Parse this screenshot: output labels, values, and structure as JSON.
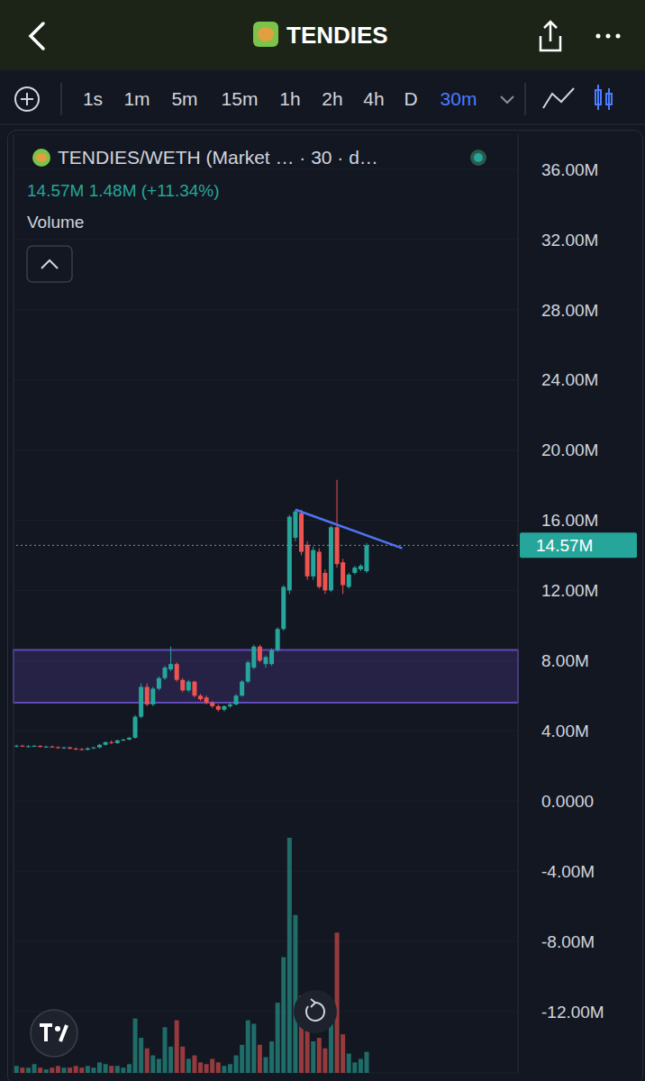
{
  "header": {
    "title": "TENDIES",
    "timeframes": [
      "1s",
      "1m",
      "5m",
      "15m",
      "1h",
      "2h",
      "4h",
      "D"
    ],
    "active_timeframe": "30m"
  },
  "info": {
    "pair": "TENDIES/WETH (Market … · 30 · d…",
    "ohlc": "14.57M 1.48M (+11.34%)",
    "volume": "Volume"
  },
  "chart_data": {
    "type": "candlestick",
    "categories": [
      null,
      null,
      null,
      null,
      null,
      null,
      null,
      null,
      null,
      null,
      null,
      null,
      null,
      null,
      null,
      null,
      null,
      null,
      null,
      null,
      null,
      null,
      null,
      null,
      null,
      null,
      null,
      null,
      null,
      null,
      null,
      null,
      null,
      null,
      null,
      null,
      null,
      null,
      null,
      null,
      null,
      null,
      null,
      null,
      null,
      null,
      null,
      null,
      null,
      null,
      null,
      null,
      null,
      null,
      null,
      null,
      null,
      null,
      null,
      null,
      null,
      null,
      null,
      null,
      null,
      null,
      null,
      null,
      null,
      null,
      null,
      null,
      null,
      null,
      null,
      null,
      null,
      null,
      null,
      null,
      null,
      null,
      null,
      null,
      null
    ],
    "open": [
      3.1,
      3.15,
      3.1,
      3.12,
      3.14,
      3.08,
      3.1,
      3.06,
      3.02,
      3.05,
      2.98,
      2.95,
      2.92,
      3.0,
      3.05,
      3.2,
      3.35,
      3.3,
      3.45,
      3.5,
      3.6,
      4.8,
      6.5,
      5.5,
      6.4,
      7.0,
      7.5,
      7.8,
      6.9,
      6.3,
      6.8,
      6.0,
      5.9,
      5.6,
      5.4,
      5.2,
      5.4,
      5.5,
      6.0,
      6.8,
      7.6,
      8.8,
      7.8,
      7.8,
      8.6,
      9.8,
      12.0,
      15.0,
      16.4,
      14.6,
      12.8,
      14.2,
      13.0,
      12.0,
      15.6,
      13.6,
      12.2,
      13.0,
      13.2,
      13.09,
      null,
      null,
      null,
      null,
      null,
      null,
      null,
      null,
      null,
      null,
      null,
      null,
      null,
      null,
      null,
      null,
      null,
      null,
      null,
      null,
      null,
      null,
      null,
      null,
      null
    ],
    "high": [
      3.2,
      3.2,
      3.18,
      3.2,
      3.18,
      3.15,
      3.16,
      3.12,
      3.1,
      3.1,
      3.05,
      3.02,
      3.05,
      3.1,
      3.25,
      3.4,
      3.45,
      3.5,
      3.55,
      3.65,
      4.9,
      6.7,
      6.7,
      6.5,
      7.1,
      7.7,
      8.8,
      7.9,
      7.0,
      6.9,
      6.85,
      6.1,
      6.0,
      5.7,
      5.5,
      5.45,
      5.6,
      6.1,
      6.9,
      8.0,
      8.9,
      8.9,
      8.3,
      8.7,
      9.9,
      12.3,
      16.3,
      16.6,
      16.6,
      14.8,
      14.5,
      14.4,
      13.2,
      15.7,
      18.3,
      13.8,
      13.0,
      13.4,
      13.5,
      14.7,
      null,
      null,
      null,
      null,
      null,
      null,
      null,
      null,
      null,
      null,
      null,
      null,
      null,
      null,
      null,
      null,
      null,
      null,
      null,
      null,
      null,
      null,
      null,
      null,
      null
    ],
    "low": [
      3.05,
      3.08,
      3.05,
      3.08,
      3.05,
      3.02,
      3.04,
      2.98,
      2.96,
      2.95,
      2.9,
      2.88,
      2.88,
      2.95,
      3.0,
      3.15,
      3.25,
      3.25,
      3.4,
      3.45,
      3.55,
      4.7,
      5.4,
      5.4,
      6.3,
      6.9,
      7.4,
      6.8,
      6.2,
      6.2,
      5.9,
      5.7,
      5.5,
      5.3,
      5.1,
      5.1,
      5.3,
      5.45,
      5.95,
      6.7,
      7.5,
      7.9,
      7.6,
      7.7,
      8.5,
      9.7,
      11.8,
      14.8,
      14.0,
      12.6,
      12.6,
      12.1,
      11.8,
      11.9,
      13.3,
      11.8,
      12.1,
      12.9,
      13.1,
      13.0,
      null,
      null,
      null,
      null,
      null,
      null,
      null,
      null,
      null,
      null,
      null,
      null,
      null,
      null,
      null,
      null,
      null,
      null,
      null,
      null,
      null,
      null,
      null,
      null,
      null
    ],
    "close": [
      3.15,
      3.1,
      3.12,
      3.14,
      3.08,
      3.1,
      3.06,
      3.02,
      3.05,
      2.98,
      2.95,
      2.92,
      3.0,
      3.05,
      3.2,
      3.35,
      3.3,
      3.45,
      3.5,
      3.6,
      4.8,
      6.5,
      5.5,
      6.4,
      7.0,
      7.6,
      7.8,
      6.9,
      6.3,
      6.8,
      6.0,
      5.8,
      5.6,
      5.4,
      5.2,
      5.4,
      5.5,
      6.0,
      6.8,
      7.9,
      8.8,
      8.0,
      8.2,
      8.6,
      9.8,
      12.2,
      16.2,
      16.5,
      14.2,
      12.8,
      14.3,
      12.2,
      12.0,
      15.6,
      13.5,
      12.3,
      12.9,
      13.3,
      13.4,
      14.57,
      null,
      null,
      null,
      null,
      null,
      null,
      null,
      null,
      null,
      null,
      null,
      null,
      null,
      null,
      null,
      null,
      null,
      null,
      null,
      null,
      null,
      null,
      null,
      null,
      null
    ],
    "colors": [
      "#26a69a",
      "#ef5350"
    ],
    "volume": {
      "type": "bar",
      "axis": "y2",
      "values": [
        0.4,
        0.3,
        0.3,
        0.5,
        0.3,
        0.2,
        0.3,
        0.4,
        0.3,
        0.3,
        0.4,
        0.3,
        0.4,
        0.3,
        0.6,
        0.5,
        0.4,
        0.4,
        0.3,
        0.5,
        3.1,
        2.0,
        1.4,
        1.0,
        0.8,
        2.6,
        1.5,
        3.0,
        1.5,
        0.8,
        1.0,
        0.6,
        0.5,
        0.8,
        0.6,
        0.4,
        0.5,
        1.0,
        1.6,
        3.0,
        2.8,
        1.6,
        0.9,
        1.8,
        4.0,
        6.6,
        13.4,
        9.0,
        4.4,
        2.5,
        1.8,
        2.0,
        1.4,
        3.2,
        8.0,
        2.2,
        1.1,
        0.6,
        0.8,
        1.2,
        null,
        null,
        null,
        null,
        null,
        null,
        null,
        null,
        null,
        null,
        null,
        null,
        null,
        null,
        null,
        null,
        null,
        null,
        null,
        null,
        null,
        null,
        null,
        null,
        null
      ]
    },
    "ylim": [
      -15.5,
      38
    ],
    "yticks": [
      {
        "value": 36,
        "label": "36.00M"
      },
      {
        "value": 32,
        "label": "32.00M"
      },
      {
        "value": 28,
        "label": "28.00M"
      },
      {
        "value": 24,
        "label": "24.00M"
      },
      {
        "value": 20,
        "label": "20.00M"
      },
      {
        "value": 16,
        "label": "16.00M"
      },
      {
        "value": 12,
        "label": "12.00M"
      },
      {
        "value": 8,
        "label": "8.00M"
      },
      {
        "value": 4,
        "label": "4.00M"
      },
      {
        "value": 0,
        "label": "0.0000"
      },
      {
        "value": -4,
        "label": "-4.00M"
      },
      {
        "value": -8,
        "label": "-8.00M"
      },
      {
        "value": -12,
        "label": "-12.00M"
      }
    ],
    "y2lim": [
      0,
      53.5
    ],
    "y2ticks": [],
    "grid": true,
    "tick_labels": "y",
    "last_price_label": "14.57M",
    "trendline": {
      "x": [
        47,
        65
      ],
      "y": [
        16.6,
        14.4
      ],
      "color": "#4f74f5"
    },
    "zones": [
      {
        "from": 5.6,
        "to": 8.6,
        "color": "#6a4fc8"
      }
    ]
  }
}
